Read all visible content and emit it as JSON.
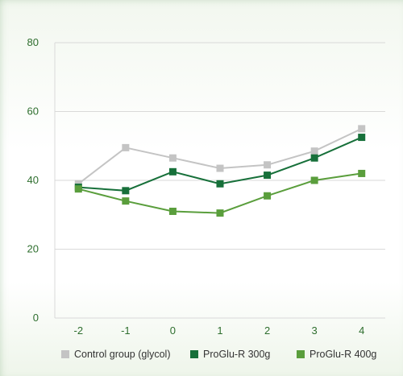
{
  "chart_data": {
    "type": "line",
    "x": [
      "-2",
      "-1",
      "0",
      "1",
      "2",
      "3",
      "4"
    ],
    "ylim": [
      0,
      80
    ],
    "yticks": [
      "0",
      "20",
      "40",
      "60",
      "80"
    ],
    "grid": "horizontal",
    "legend_position": "bottom",
    "series": [
      {
        "name": "Control group (glycol)",
        "color": "#c4c4c4",
        "values": [
          39,
          49.5,
          46.5,
          43.5,
          44.5,
          48.5,
          55
        ]
      },
      {
        "name": "ProGlu-R 300g",
        "color": "#17703a",
        "values": [
          38,
          37,
          42.5,
          39,
          41.5,
          46.5,
          52.5
        ]
      },
      {
        "name": "ProGlu-R 400g",
        "color": "#5a9e3c",
        "values": [
          37.5,
          34,
          31,
          30.5,
          35.5,
          40,
          42
        ]
      }
    ]
  }
}
